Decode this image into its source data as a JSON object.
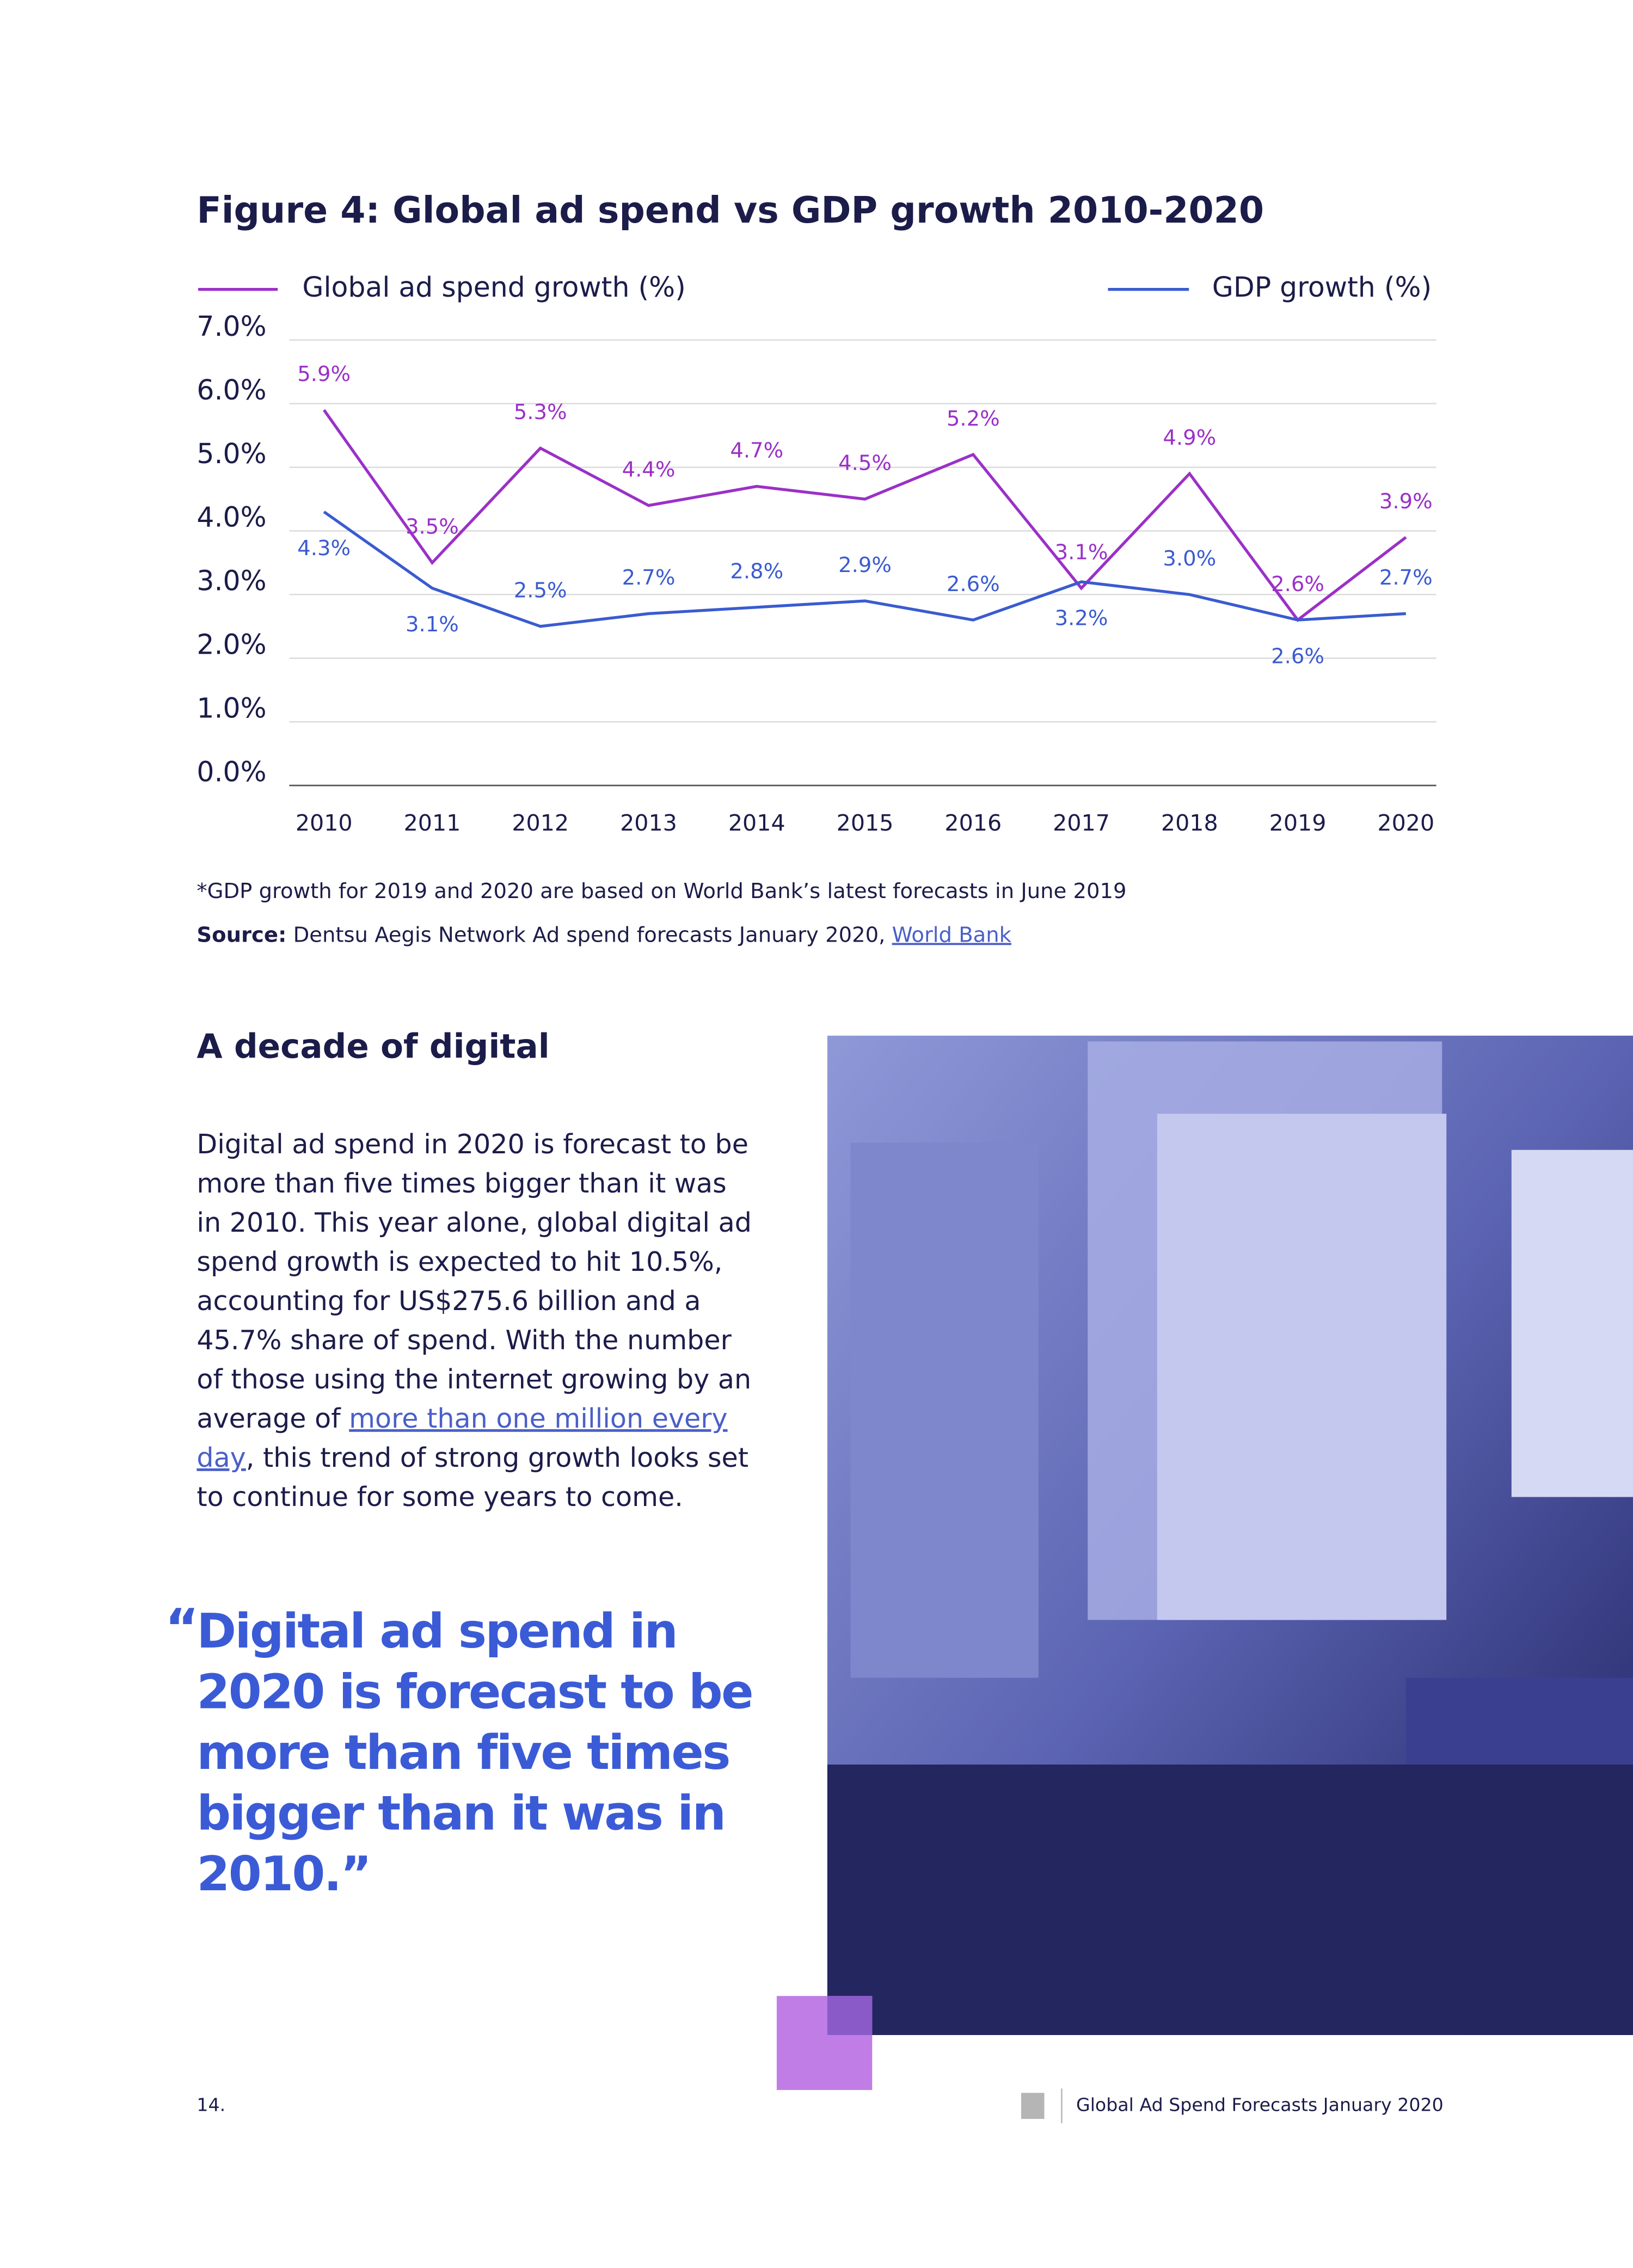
{
  "chart_data": {
    "type": "line",
    "title": "Figure 4: Global ad spend vs GDP growth 2010-2020",
    "categories": [
      "2010",
      "2011",
      "2012",
      "2013",
      "2014",
      "2015",
      "2016",
      "2017",
      "2018",
      "2019",
      "2020"
    ],
    "series": [
      {
        "name": "Global ad spend growth (%)",
        "color": "#9b30c8",
        "values": [
          5.9,
          3.5,
          5.3,
          4.4,
          4.7,
          4.5,
          5.2,
          3.1,
          4.9,
          2.6,
          3.9
        ],
        "value_labels": [
          "5.9%",
          "3.5%",
          "5.3%",
          "4.4%",
          "4.7%",
          "4.5%",
          "5.2%",
          "3.1%",
          "4.9%",
          "2.6%",
          "3.9%"
        ]
      },
      {
        "name": "GDP growth (%)",
        "color": "#3a5bd0",
        "values": [
          4.3,
          3.1,
          2.5,
          2.7,
          2.8,
          2.9,
          2.6,
          3.2,
          3.0,
          2.6,
          2.7
        ],
        "value_labels": [
          "4.3%",
          "3.1%",
          "2.5%",
          "2.7%",
          "2.8%",
          "2.9%",
          "2.6%",
          "3.2%",
          "3.0%",
          "2.6%",
          "2.7%"
        ]
      }
    ],
    "ylim": [
      0,
      7
    ],
    "yticks": [
      {
        "value": 0,
        "label": "0.0%"
      },
      {
        "value": 1,
        "label": "1.0%"
      },
      {
        "value": 2,
        "label": "2.0%"
      },
      {
        "value": 3,
        "label": "3.0%"
      },
      {
        "value": 4,
        "label": "4.0%"
      },
      {
        "value": 5,
        "label": "5.0%"
      },
      {
        "value": 6,
        "label": "6.0%"
      },
      {
        "value": 7,
        "label": "7.0%"
      }
    ],
    "grid": true,
    "legend": "top"
  },
  "footnote": "*GDP growth for 2019 and 2020 are based on World Bank’s latest forecasts in June 2019",
  "source": {
    "label": "Source:",
    "text": " Dentsu Aegis Network Ad spend forecasts January 2020, ",
    "link": "World Bank"
  },
  "section": {
    "heading": "A decade of digital",
    "lines": [
      [
        {
          "text": "Digital ad spend in 2020 is forecast to be"
        }
      ],
      [
        {
          "text": "more than five times bigger than it was"
        }
      ],
      [
        {
          "text": "in 2010. This year alone, global digital ad"
        }
      ],
      [
        {
          "text": "spend growth is expected to hit 10.5%,"
        }
      ],
      [
        {
          "text": "accounting for US$275.6 billion and a"
        }
      ],
      [
        {
          "text": "45.7% share of spend. With the number"
        }
      ],
      [
        {
          "text": "of those using the internet growing by an"
        }
      ],
      [
        {
          "text": "average of "
        },
        {
          "text": "more than one million every ",
          "link": true
        }
      ],
      [
        {
          "text": "day",
          "link": true
        },
        {
          "text": ", this trend of strong growth looks set"
        }
      ],
      [
        {
          "text": "to continue for some years to come."
        }
      ]
    ]
  },
  "quote": {
    "open_quote": "“",
    "lines": [
      "Digital ad spend in",
      "2020 is forecast to be",
      "more than five times",
      "bigger than it was in",
      "2010.”"
    ]
  },
  "footer": {
    "page": "14.",
    "title": "Global Ad Spend Forecasts January 2020"
  }
}
